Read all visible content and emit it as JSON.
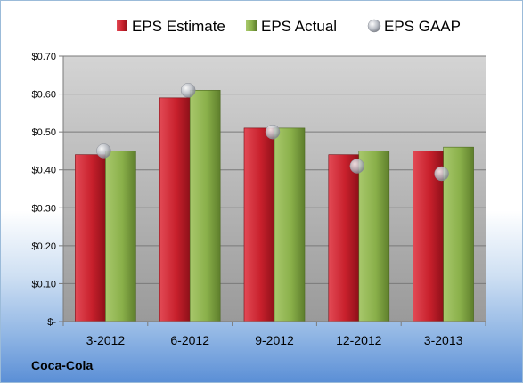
{
  "company": "Coca-Cola",
  "colors": {
    "estimate": "#c8202c",
    "actual": "#8ab04a",
    "gaap": "#b8bcc4",
    "plot_top": "#d4d4d4",
    "plot_bottom": "#9a9a9a"
  },
  "chart_data": {
    "type": "bar",
    "title": "",
    "xlabel": "",
    "ylabel": "",
    "categories": [
      "3-2012",
      "6-2012",
      "9-2012",
      "12-2012",
      "3-2013"
    ],
    "series": [
      {
        "name": "EPS Estimate",
        "kind": "bar",
        "values": [
          0.44,
          0.59,
          0.51,
          0.44,
          0.45
        ]
      },
      {
        "name": "EPS Actual",
        "kind": "bar",
        "values": [
          0.45,
          0.61,
          0.51,
          0.45,
          0.46
        ]
      },
      {
        "name": "EPS GAAP",
        "kind": "marker",
        "values": [
          0.45,
          0.61,
          0.5,
          0.41,
          0.39
        ]
      }
    ],
    "ylim": [
      0,
      0.7
    ],
    "yticks": [
      0,
      0.1,
      0.2,
      0.3,
      0.4,
      0.5,
      0.6,
      0.7
    ],
    "ytick_labels": [
      "$-",
      "$0.10",
      "$0.20",
      "$0.30",
      "$0.40",
      "$0.50",
      "$0.60",
      "$0.70"
    ],
    "grid": true,
    "legend_position": "top"
  }
}
